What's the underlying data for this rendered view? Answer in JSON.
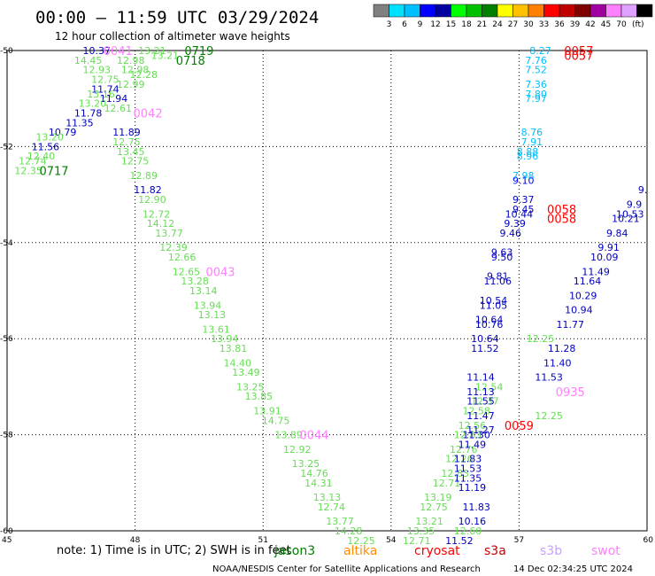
{
  "header": {
    "title": "00:00 – 11:59 UTC 03/29/2024",
    "subtitle": "12 hour collection of altimeter wave heights",
    "legend_unit": "(ft)"
  },
  "colorbar": {
    "colors": [
      "#808080",
      "#00e0ff",
      "#00bfff",
      "#0000ff",
      "#0000a0",
      "#00ff00",
      "#00c000",
      "#008000",
      "#ffff00",
      "#ffc000",
      "#ff8000",
      "#ff0000",
      "#c00000",
      "#800000",
      "#a000a0",
      "#ff80ff",
      "#e0a0ff",
      "#000000"
    ],
    "labels": [
      "3",
      "6",
      "9",
      "12",
      "15",
      "18",
      "21",
      "24",
      "27",
      "30",
      "33",
      "36",
      "39",
      "42",
      "45",
      "70"
    ]
  },
  "footer": {
    "note": "note:  1) Time is in UTC;  2) SWH is in feet",
    "satellites": [
      {
        "name": "jason3",
        "color": "#008000"
      },
      {
        "name": "altika",
        "color": "#ff8c00"
      },
      {
        "name": "cryosat",
        "color": "#ff0000"
      },
      {
        "name": "s3a",
        "color": "#c00000"
      },
      {
        "name": "s3b",
        "color": "#c8a0ff"
      },
      {
        "name": "swot",
        "color": "#ff80ff"
      }
    ],
    "credit": "NOAA/NESDIS Center for Satellite Applications and Research",
    "timestamp": "14 Dec 02:34:25 UTC 2024"
  },
  "chart_data": {
    "type": "scatter",
    "title": "00:00 – 11:59 UTC 03/29/2024",
    "xlim": [
      45,
      60
    ],
    "ylim": [
      -60,
      -50
    ],
    "xticks": [
      "45",
      "48",
      "51",
      "54",
      "57",
      "60"
    ],
    "yticks": [
      "-50",
      "-52",
      "-54",
      "-56",
      "-58",
      "-60"
    ],
    "grid": true,
    "points": [
      {
        "x": 47.1,
        "y": -50.0,
        "label": "10.37",
        "color": "#0000c0"
      },
      {
        "x": 46.9,
        "y": -50.2,
        "label": "14.45",
        "color": "#66dd55"
      },
      {
        "x": 47.1,
        "y": -50.4,
        "label": "12.93",
        "color": "#66dd55"
      },
      {
        "x": 47.3,
        "y": -50.6,
        "label": "12.75",
        "color": "#66dd55"
      },
      {
        "x": 47.3,
        "y": -50.8,
        "label": "11.74",
        "color": "#0000c0"
      },
      {
        "x": 47.2,
        "y": -50.9,
        "label": "13.16",
        "color": "#66dd55"
      },
      {
        "x": 47.5,
        "y": -51.0,
        "label": "11.94",
        "color": "#0000c0"
      },
      {
        "x": 47.0,
        "y": -51.1,
        "label": "13.20",
        "color": "#66dd55"
      },
      {
        "x": 47.6,
        "y": -51.2,
        "label": "12.61",
        "color": "#66dd55"
      },
      {
        "x": 46.9,
        "y": -51.3,
        "label": "11.78",
        "color": "#0000c0"
      },
      {
        "x": 46.7,
        "y": -51.5,
        "label": "11.35",
        "color": "#0000c0"
      },
      {
        "x": 46.3,
        "y": -51.7,
        "label": "10.79",
        "color": "#0000c0"
      },
      {
        "x": 46.0,
        "y": -51.8,
        "label": "13.20",
        "color": "#66dd55"
      },
      {
        "x": 45.9,
        "y": -52.0,
        "label": "11.56",
        "color": "#0000c0"
      },
      {
        "x": 45.8,
        "y": -52.2,
        "label": "12.40",
        "color": "#66dd55"
      },
      {
        "x": 45.6,
        "y": -52.3,
        "label": "12.74",
        "color": "#66dd55"
      },
      {
        "x": 45.5,
        "y": -52.5,
        "label": "12.35",
        "color": "#66dd55"
      },
      {
        "x": 47.9,
        "y": -50.2,
        "label": "12.98",
        "color": "#66dd55"
      },
      {
        "x": 48.0,
        "y": -50.4,
        "label": "12.98",
        "color": "#66dd55"
      },
      {
        "x": 48.4,
        "y": -50.0,
        "label": "13.21",
        "color": "#66dd55"
      },
      {
        "x": 48.7,
        "y": -50.1,
        "label": "13.21",
        "color": "#66dd55"
      },
      {
        "x": 48.2,
        "y": -50.5,
        "label": "12.28",
        "color": "#66dd55"
      },
      {
        "x": 47.9,
        "y": -50.7,
        "label": "12.99",
        "color": "#66dd55"
      },
      {
        "x": 47.8,
        "y": -51.7,
        "label": "11.89",
        "color": "#0000c0"
      },
      {
        "x": 47.8,
        "y": -51.9,
        "label": "12.75",
        "color": "#66dd55"
      },
      {
        "x": 47.9,
        "y": -52.1,
        "label": "13.45",
        "color": "#66dd55"
      },
      {
        "x": 48.0,
        "y": -52.3,
        "label": "12.75",
        "color": "#66dd55"
      },
      {
        "x": 48.2,
        "y": -52.6,
        "label": "12.89",
        "color": "#66dd55"
      },
      {
        "x": 48.3,
        "y": -52.9,
        "label": "11.82",
        "color": "#0000c0"
      },
      {
        "x": 48.4,
        "y": -53.1,
        "label": "12.90",
        "color": "#66dd55"
      },
      {
        "x": 48.5,
        "y": -53.4,
        "label": "12.72",
        "color": "#66dd55"
      },
      {
        "x": 48.6,
        "y": -53.6,
        "label": "14.12",
        "color": "#66dd55"
      },
      {
        "x": 48.8,
        "y": -53.8,
        "label": "13.77",
        "color": "#66dd55"
      },
      {
        "x": 48.9,
        "y": -54.1,
        "label": "12.39",
        "color": "#66dd55"
      },
      {
        "x": 49.1,
        "y": -54.3,
        "label": "12.66",
        "color": "#66dd55"
      },
      {
        "x": 49.2,
        "y": -54.6,
        "label": "12.65",
        "color": "#66dd55"
      },
      {
        "x": 49.4,
        "y": -54.8,
        "label": "13.28",
        "color": "#66dd55"
      },
      {
        "x": 49.6,
        "y": -55.0,
        "label": "13.14",
        "color": "#66dd55"
      },
      {
        "x": 49.7,
        "y": -55.3,
        "label": "13.94",
        "color": "#66dd55"
      },
      {
        "x": 49.8,
        "y": -55.5,
        "label": "13.13",
        "color": "#66dd55"
      },
      {
        "x": 49.9,
        "y": -55.8,
        "label": "13.61",
        "color": "#66dd55"
      },
      {
        "x": 50.1,
        "y": -56.0,
        "label": "13.94",
        "color": "#66dd55"
      },
      {
        "x": 50.3,
        "y": -56.2,
        "label": "13.81",
        "color": "#66dd55"
      },
      {
        "x": 50.4,
        "y": -56.5,
        "label": "14.40",
        "color": "#66dd55"
      },
      {
        "x": 50.6,
        "y": -56.7,
        "label": "13.49",
        "color": "#66dd55"
      },
      {
        "x": 50.7,
        "y": -57.0,
        "label": "13.25",
        "color": "#66dd55"
      },
      {
        "x": 50.9,
        "y": -57.2,
        "label": "13.85",
        "color": "#66dd55"
      },
      {
        "x": 51.1,
        "y": -57.5,
        "label": "13.91",
        "color": "#66dd55"
      },
      {
        "x": 51.3,
        "y": -57.7,
        "label": "14.75",
        "color": "#66dd55"
      },
      {
        "x": 51.6,
        "y": -58.0,
        "label": "13.89",
        "color": "#66dd55"
      },
      {
        "x": 51.8,
        "y": -58.3,
        "label": "12.92",
        "color": "#66dd55"
      },
      {
        "x": 52.0,
        "y": -58.6,
        "label": "13.25",
        "color": "#66dd55"
      },
      {
        "x": 52.2,
        "y": -58.8,
        "label": "14.76",
        "color": "#66dd55"
      },
      {
        "x": 52.3,
        "y": -59.0,
        "label": "14.31",
        "color": "#66dd55"
      },
      {
        "x": 52.5,
        "y": -59.3,
        "label": "13.13",
        "color": "#66dd55"
      },
      {
        "x": 52.6,
        "y": -59.5,
        "label": "12.74",
        "color": "#66dd55"
      },
      {
        "x": 52.8,
        "y": -59.8,
        "label": "13.77",
        "color": "#66dd55"
      },
      {
        "x": 53.0,
        "y": -60.0,
        "label": "14.28",
        "color": "#66dd55"
      },
      {
        "x": 53.3,
        "y": -60.2,
        "label": "12.25",
        "color": "#66dd55"
      },
      {
        "x": 54.6,
        "y": -60.2,
        "label": "12.71",
        "color": "#66dd55"
      },
      {
        "x": 54.7,
        "y": -60.0,
        "label": "13.35",
        "color": "#66dd55"
      },
      {
        "x": 54.9,
        "y": -59.8,
        "label": "13.21",
        "color": "#66dd55"
      },
      {
        "x": 55.0,
        "y": -59.5,
        "label": "12.75",
        "color": "#66dd55"
      },
      {
        "x": 55.1,
        "y": -59.3,
        "label": "13.19",
        "color": "#66dd55"
      },
      {
        "x": 55.3,
        "y": -59.0,
        "label": "12.71",
        "color": "#66dd55"
      },
      {
        "x": 55.5,
        "y": -58.8,
        "label": "12.83",
        "color": "#66dd55"
      },
      {
        "x": 55.6,
        "y": -58.5,
        "label": "12.26",
        "color": "#66dd55"
      },
      {
        "x": 55.7,
        "y": -58.3,
        "label": "12.76",
        "color": "#66dd55"
      },
      {
        "x": 55.8,
        "y": -58.0,
        "label": "12.83",
        "color": "#66dd55"
      },
      {
        "x": 55.9,
        "y": -57.8,
        "label": "12.56",
        "color": "#66dd55"
      },
      {
        "x": 56.0,
        "y": -57.5,
        "label": "12.58",
        "color": "#66dd55"
      },
      {
        "x": 56.2,
        "y": -57.3,
        "label": "12.37",
        "color": "#66dd55"
      },
      {
        "x": 56.3,
        "y": -57.0,
        "label": "12.54",
        "color": "#66dd55"
      },
      {
        "x": 55.6,
        "y": -60.2,
        "label": "11.52",
        "color": "#0000c0"
      },
      {
        "x": 55.8,
        "y": -60.0,
        "label": "12.60",
        "color": "#66dd55"
      },
      {
        "x": 55.9,
        "y": -59.8,
        "label": "10.16",
        "color": "#0000c0"
      },
      {
        "x": 56.0,
        "y": -59.5,
        "label": "11.83",
        "color": "#0000c0"
      },
      {
        "x": 55.9,
        "y": -59.1,
        "label": "11.19",
        "color": "#0000c0"
      },
      {
        "x": 55.8,
        "y": -58.9,
        "label": "11.35",
        "color": "#0000c0"
      },
      {
        "x": 55.8,
        "y": -58.7,
        "label": "11.53",
        "color": "#0000c0"
      },
      {
        "x": 55.8,
        "y": -58.5,
        "label": "11.83",
        "color": "#0000c0"
      },
      {
        "x": 55.9,
        "y": -58.2,
        "label": "11.49",
        "color": "#0000c0"
      },
      {
        "x": 56.0,
        "y": -58.0,
        "label": "11.30",
        "color": "#0000c0"
      },
      {
        "x": 56.1,
        "y": -57.9,
        "label": "11.27",
        "color": "#0000c0"
      },
      {
        "x": 56.1,
        "y": -57.6,
        "label": "11.47",
        "color": "#0000c0"
      },
      {
        "x": 56.1,
        "y": -57.3,
        "label": "11.55",
        "color": "#0000c0"
      },
      {
        "x": 56.1,
        "y": -57.1,
        "label": "11.13",
        "color": "#0000c0"
      },
      {
        "x": 56.1,
        "y": -56.8,
        "label": "11.14",
        "color": "#0000c0"
      },
      {
        "x": 56.2,
        "y": -56.2,
        "label": "11.52",
        "color": "#0000c0"
      },
      {
        "x": 56.2,
        "y": -56.0,
        "label": "10.64",
        "color": "#0000c0"
      },
      {
        "x": 56.3,
        "y": -55.7,
        "label": "10.76",
        "color": "#0000c0"
      },
      {
        "x": 56.3,
        "y": -55.6,
        "label": "10.64",
        "color": "#0000c0"
      },
      {
        "x": 56.4,
        "y": -55.3,
        "label": "11.05",
        "color": "#0000c0"
      },
      {
        "x": 56.4,
        "y": -55.2,
        "label": "10.54",
        "color": "#0000c0"
      },
      {
        "x": 56.5,
        "y": -54.8,
        "label": "11.06",
        "color": "#0000c0"
      },
      {
        "x": 56.5,
        "y": -54.7,
        "label": "9.81",
        "color": "#0000c0"
      },
      {
        "x": 56.6,
        "y": -54.3,
        "label": "9.50",
        "color": "#0000c0"
      },
      {
        "x": 56.6,
        "y": -54.2,
        "label": "9.63",
        "color": "#0000c0"
      },
      {
        "x": 56.8,
        "y": -53.8,
        "label": "9.46",
        "color": "#0000c0"
      },
      {
        "x": 56.9,
        "y": -53.6,
        "label": "9.39",
        "color": "#0000c0"
      },
      {
        "x": 57.0,
        "y": -53.4,
        "label": "10.44",
        "color": "#0000c0"
      },
      {
        "x": 57.1,
        "y": -53.3,
        "label": "9.45",
        "color": "#0000c0"
      },
      {
        "x": 57.1,
        "y": -53.1,
        "label": "9.37",
        "color": "#0000c0"
      },
      {
        "x": 57.1,
        "y": -52.7,
        "label": "9.10",
        "color": "#0000ff"
      },
      {
        "x": 57.1,
        "y": -52.6,
        "label": "7.98",
        "color": "#00bfff"
      },
      {
        "x": 57.2,
        "y": -52.2,
        "label": "8.96",
        "color": "#00bfff"
      },
      {
        "x": 57.2,
        "y": -52.1,
        "label": "8.88",
        "color": "#00bfff"
      },
      {
        "x": 57.3,
        "y": -51.9,
        "label": "7.91",
        "color": "#00bfff"
      },
      {
        "x": 57.3,
        "y": -51.7,
        "label": "8.76",
        "color": "#00bfff"
      },
      {
        "x": 57.4,
        "y": -51.0,
        "label": "7.97",
        "color": "#00bfff"
      },
      {
        "x": 57.4,
        "y": -50.9,
        "label": "7.80",
        "color": "#00bfff"
      },
      {
        "x": 57.4,
        "y": -50.7,
        "label": "7.36",
        "color": "#00bfff"
      },
      {
        "x": 57.4,
        "y": -50.4,
        "label": "7.52",
        "color": "#00bfff"
      },
      {
        "x": 57.4,
        "y": -50.2,
        "label": "7.76",
        "color": "#00bfff"
      },
      {
        "x": 57.5,
        "y": -50.0,
        "label": "8.27",
        "color": "#00bfff"
      },
      {
        "x": 57.7,
        "y": -57.6,
        "label": "12.25",
        "color": "#66dd55"
      },
      {
        "x": 57.7,
        "y": -56.8,
        "label": "11.53",
        "color": "#0000c0"
      },
      {
        "x": 57.9,
        "y": -56.5,
        "label": "11.40",
        "color": "#0000c0"
      },
      {
        "x": 58.0,
        "y": -56.2,
        "label": "11.28",
        "color": "#0000c0"
      },
      {
        "x": 57.5,
        "y": -56.0,
        "label": "12.25",
        "color": "#66dd55"
      },
      {
        "x": 58.2,
        "y": -55.7,
        "label": "11.77",
        "color": "#0000c0"
      },
      {
        "x": 58.4,
        "y": -55.4,
        "label": "10.94",
        "color": "#0000c0"
      },
      {
        "x": 58.5,
        "y": -55.1,
        "label": "10.29",
        "color": "#0000c0"
      },
      {
        "x": 58.6,
        "y": -54.8,
        "label": "11.64",
        "color": "#0000c0"
      },
      {
        "x": 58.8,
        "y": -54.6,
        "label": "11.49",
        "color": "#0000c0"
      },
      {
        "x": 59.0,
        "y": -54.3,
        "label": "10.09",
        "color": "#0000c0"
      },
      {
        "x": 59.1,
        "y": -54.1,
        "label": "9.91",
        "color": "#0000c0"
      },
      {
        "x": 59.3,
        "y": -53.8,
        "label": "9.84",
        "color": "#0000c0"
      },
      {
        "x": 59.5,
        "y": -53.5,
        "label": "10.21",
        "color": "#0000c0"
      },
      {
        "x": 59.6,
        "y": -53.4,
        "label": "10.53",
        "color": "#0000c0"
      },
      {
        "x": 59.7,
        "y": -53.2,
        "label": "9.9",
        "color": "#0000c0"
      },
      {
        "x": 59.9,
        "y": -52.9,
        "label": "9.",
        "color": "#0000c0"
      }
    ],
    "tracks": [
      {
        "x": 46.1,
        "y": -52.5,
        "label": "0717",
        "color": "#008000"
      },
      {
        "x": 47.6,
        "y": -50.0,
        "label": "0041",
        "color": "#ff80ff"
      },
      {
        "x": 49.3,
        "y": -50.2,
        "label": "0718",
        "color": "#008000"
      },
      {
        "x": 49.5,
        "y": -50.0,
        "label": "0719",
        "color": "#008000"
      },
      {
        "x": 48.3,
        "y": -51.3,
        "label": "0042",
        "color": "#ff80ff"
      },
      {
        "x": 50.0,
        "y": -54.6,
        "label": "0043",
        "color": "#ff80ff"
      },
      {
        "x": 52.2,
        "y": -58.0,
        "label": "0044",
        "color": "#ff80ff"
      },
      {
        "x": 58.4,
        "y": -50.0,
        "label": "0057",
        "color": "#ff0000"
      },
      {
        "x": 58.4,
        "y": -50.1,
        "label": "0057",
        "color": "#ff0000"
      },
      {
        "x": 58.0,
        "y": -53.3,
        "label": "0058",
        "color": "#ff0000"
      },
      {
        "x": 58.0,
        "y": -53.5,
        "label": "0058",
        "color": "#ff0000"
      },
      {
        "x": 57.0,
        "y": -57.8,
        "label": "0059",
        "color": "#ff0000"
      },
      {
        "x": 58.2,
        "y": -57.1,
        "label": "0935",
        "color": "#ff80ff"
      }
    ]
  }
}
